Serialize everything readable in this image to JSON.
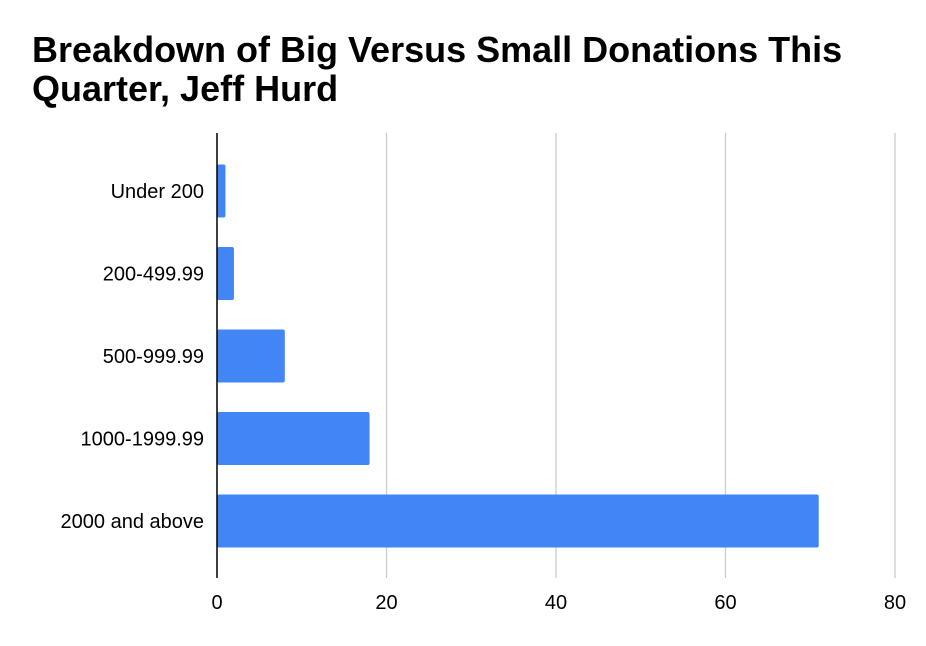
{
  "chart_data": {
    "type": "bar",
    "orientation": "horizontal",
    "title": "Breakdown of Big Versus Small Donations This Quarter, Jeff Hurd",
    "categories": [
      "Under 200",
      "200-499.99",
      "500-999.99",
      "1000-1999.99",
      "2000 and above"
    ],
    "values": [
      1,
      2,
      8,
      18,
      71
    ],
    "xlim": [
      0,
      80
    ],
    "xticks": [
      "0",
      "20",
      "40",
      "60",
      "80"
    ],
    "grid": "vertical",
    "bar_color": "#4285f4",
    "gridline_color": "#cccccc",
    "axis_color": "#000000"
  }
}
